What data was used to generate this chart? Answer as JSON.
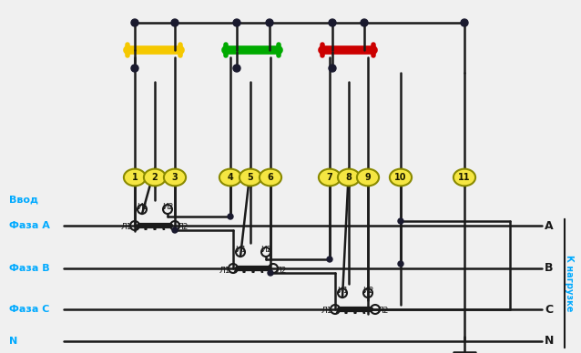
{
  "bg_color": "#f0f0f0",
  "line_color": "#1a1a1a",
  "phase_label_color": "#00aaff",
  "load_label_color": "#00aaff",
  "terminal_bg": "#f5e642",
  "terminal_border": "#8a8a00",
  "title_color": "#1a1a1a",
  "yellow_bar_color": "#f5c800",
  "green_bar_color": "#00aa00",
  "red_bar_color": "#cc0000",
  "node_color": "#1a1a2e",
  "transformer_color": "#1a1a1a",
  "phases": [
    "Фаза А",
    "Фаза В",
    "Фаза С",
    "N"
  ],
  "input_label": "Ввод",
  "right_labels": [
    "А",
    "В",
    "С",
    "N"
  ],
  "right_label_load": "К нагрузке",
  "terminal_numbers": [
    "1",
    "2",
    "3",
    "4",
    "5",
    "6",
    "7",
    "8",
    "9",
    "10",
    "11"
  ],
  "lw": 1.8,
  "lw_thick": 3.5
}
